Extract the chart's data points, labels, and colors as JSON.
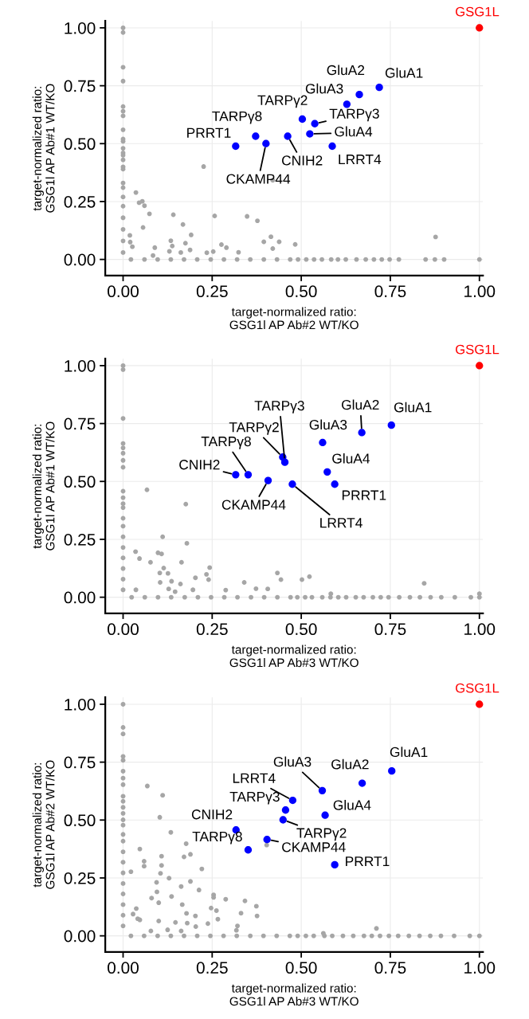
{
  "chart_data": [
    {
      "type": "scatter",
      "xlabel": "target-normalized ratio:\nGSG1l AP Ab#2 WT/KO",
      "ylabel": "target-normalized ratio:\nGSG1l AP Ab#1 WT/KO",
      "xlim": [
        -0.05,
        1.01
      ],
      "ylim": [
        -0.07,
        1.03
      ],
      "xticks": [
        {
          "value": 0,
          "label": "0.00"
        },
        {
          "value": 0.25,
          "label": "0.25"
        },
        {
          "value": 0.5,
          "label": "0.50"
        },
        {
          "value": 0.75,
          "label": "0.75"
        },
        {
          "value": 1,
          "label": "1.00"
        }
      ],
      "yticks": [
        {
          "value": 0,
          "label": "0.00"
        },
        {
          "value": 0.25,
          "label": "0.25"
        },
        {
          "value": 0.5,
          "label": "0.50"
        },
        {
          "value": 0.75,
          "label": "0.75"
        },
        {
          "value": 1,
          "label": "1.00"
        }
      ],
      "grid": true,
      "marker": "circle",
      "series": [
        {
          "color": "#a6a6a6",
          "x": [
            0,
            0,
            0,
            0,
            0,
            0,
            0,
            0,
            0,
            0,
            0,
            0,
            0,
            0,
            0,
            0,
            0,
            0,
            0,
            0,
            0,
            0,
            0,
            0,
            0.036,
            0.045,
            0.054,
            0.06,
            0.074,
            0.056,
            0.141,
            0.168,
            0.226,
            0.257,
            0.348,
            0.377,
            0.42,
            0.191,
            0.019,
            0.02,
            0.026,
            0.089,
            0.134,
            0.138,
            0.175,
            0.188,
            0.13,
            0.162,
            0.235,
            0.253,
            0.276,
            0.29,
            0.324,
            0.395,
            0.415,
            0.438,
            0.42,
            0.483,
            0.877,
            0.084,
            0.022,
            0.06,
            0.097,
            0.134,
            0.171,
            0.208,
            0.246,
            0.283,
            0.32,
            0.357,
            0.395,
            0.432,
            0.469,
            0.491,
            0.514,
            0.536,
            0.558,
            0.584,
            0.603,
            0.625,
            0.655,
            0.681,
            0.704,
            0.726,
            0.748,
            0.774,
            0.849,
            0.875,
            0.901,
            1.0
          ],
          "values": [
            1.0,
            0.98,
            0.83,
            0.77,
            0.66,
            0.64,
            0.62,
            0.56,
            0.52,
            0.51,
            0.48,
            0.46,
            0.45,
            0.43,
            0.4,
            0.39,
            0.33,
            0.31,
            0.27,
            0.23,
            0.18,
            0.13,
            0.08,
            0.03,
            0.289,
            0.245,
            0.251,
            0.232,
            0.197,
            0.138,
            0.193,
            0.151,
            0.401,
            0.188,
            0.186,
            0.167,
            0.342,
            0.106,
            0.104,
            0.075,
            0.055,
            0.051,
            0.081,
            0.058,
            0.07,
            0.041,
            0.035,
            0.03,
            0.029,
            0.034,
            0.064,
            0.051,
            0.031,
            0.076,
            0.098,
            0.076,
            0.047,
            0.065,
            0.097,
            0.017,
            0,
            0,
            0,
            0,
            0,
            0,
            0,
            0,
            0,
            0,
            0,
            0,
            0,
            0,
            0,
            0,
            0,
            0,
            0,
            0,
            0,
            0,
            0,
            0,
            0,
            0,
            0,
            0,
            0,
            0
          ]
        },
        {
          "color": "#0000ff",
          "x": [
            0.719,
            0.663,
            0.628,
            0.524,
            0.503,
            0.538,
            0.372,
            0.462,
            0.401,
            0.587,
            0.316
          ],
          "values": [
            0.743,
            0.712,
            0.67,
            0.542,
            0.606,
            0.586,
            0.532,
            0.532,
            0.5,
            0.489,
            0.489
          ]
        },
        {
          "name": "GSG1L",
          "color": "#ff0000",
          "x": [
            1.0
          ],
          "values": [
            1.0
          ]
        }
      ],
      "annotations": [
        {
          "text": "GluA1",
          "x": 0.719,
          "y": 0.743
        },
        {
          "text": "GluA2",
          "x": 0.663,
          "y": 0.712
        },
        {
          "text": "GluA3",
          "x": 0.628,
          "y": 0.67
        },
        {
          "text": "GluA4",
          "x": 0.524,
          "y": 0.542
        },
        {
          "text": "TARPγ2",
          "x": 0.503,
          "y": 0.606
        },
        {
          "text": "TARPγ3",
          "x": 0.538,
          "y": 0.586
        },
        {
          "text": "TARPγ8",
          "x": 0.372,
          "y": 0.532
        },
        {
          "text": "CNIH2",
          "x": 0.462,
          "y": 0.532
        },
        {
          "text": "CKAMP44",
          "x": 0.401,
          "y": 0.5
        },
        {
          "text": "LRRT4",
          "x": 0.587,
          "y": 0.489
        },
        {
          "text": "PRRT1",
          "x": 0.316,
          "y": 0.489
        }
      ]
    },
    {
      "type": "scatter",
      "xlabel": "target-normalized ratio:\nGSG1l AP Ab#3 WT/KO",
      "ylabel": "target-normalized ratio:\nGSG1l AP Ab#1 WT/KO",
      "xlim": [
        -0.05,
        1.01
      ],
      "ylim": [
        -0.07,
        1.03
      ],
      "xticks": [
        {
          "value": 0,
          "label": "0.00"
        },
        {
          "value": 0.25,
          "label": "0.25"
        },
        {
          "value": 0.5,
          "label": "0.50"
        },
        {
          "value": 0.75,
          "label": "0.75"
        },
        {
          "value": 1,
          "label": "1.00"
        }
      ],
      "yticks": [
        {
          "value": 0,
          "label": "0.00"
        },
        {
          "value": 0.25,
          "label": "0.25"
        },
        {
          "value": 0.5,
          "label": "0.50"
        },
        {
          "value": 0.75,
          "label": "0.75"
        },
        {
          "value": 1,
          "label": "1.00"
        }
      ],
      "grid": true,
      "marker": "circle",
      "series": [
        {
          "color": "#a6a6a6",
          "x": [
            0,
            0,
            0,
            0,
            0,
            0,
            0,
            0,
            0,
            0,
            0,
            0,
            0,
            0,
            0,
            0,
            0,
            0,
            0,
            0,
            0.067,
            0.176,
            0.111,
            0.179,
            0.035,
            0.046,
            0.098,
            0.108,
            0.077,
            0.164,
            0.114,
            0.103,
            0.126,
            0.243,
            0.136,
            0.104,
            0.161,
            0.203,
            0.234,
            0.24,
            0.128,
            0.196,
            0.288,
            0.34,
            0.373,
            0.406,
            0.433,
            0.443,
            0.502,
            0.523,
            0.583,
            0.845,
            0.036,
            0.146,
            0.024,
            0.061,
            0.098,
            0.135,
            0.173,
            0.21,
            0.247,
            0.284,
            0.321,
            0.359,
            0.396,
            0.433,
            0.47,
            0.489,
            0.511,
            0.53,
            0.559,
            0.582,
            0.604,
            0.626,
            0.653,
            0.675,
            0.701,
            0.723,
            0.745,
            0.775,
            0.805,
            0.833,
            0.863,
            0.893,
            0.931,
            0.976,
            1.0,
            1.0
          ],
          "values": [
            1.0,
            0.983,
            0.772,
            0.664,
            0.645,
            0.622,
            0.591,
            0.561,
            0.458,
            0.43,
            0.404,
            0.387,
            0.341,
            0.307,
            0.261,
            0.215,
            0.17,
            0.124,
            0.078,
            0.032,
            0.464,
            0.402,
            0.261,
            0.233,
            0.197,
            0.167,
            0.192,
            0.187,
            0.151,
            0.151,
            0.126,
            0.105,
            0.103,
            0.128,
            0.069,
            0.064,
            0.057,
            0.084,
            0.099,
            0.076,
            0.036,
            0.032,
            0.031,
            0.064,
            0.037,
            0.036,
            0.105,
            0.076,
            0.076,
            0.089,
            0.015,
            0.06,
            0.032,
            0.024,
            0,
            0,
            0,
            0,
            0,
            0,
            0,
            0,
            0,
            0,
            0,
            0,
            0,
            0,
            0,
            0,
            0,
            0,
            0,
            0,
            0,
            0,
            0,
            0,
            0,
            0,
            0,
            0,
            0,
            0,
            0,
            0,
            0,
            0.015
          ]
        },
        {
          "color": "#0000ff",
          "x": [
            0.753,
            0.67,
            0.56,
            0.573,
            0.448,
            0.454,
            0.351,
            0.316,
            0.407,
            0.475,
            0.594
          ],
          "values": [
            0.743,
            0.711,
            0.668,
            0.541,
            0.605,
            0.583,
            0.529,
            0.529,
            0.504,
            0.488,
            0.488
          ]
        },
        {
          "name": "GSG1L",
          "color": "#ff0000",
          "x": [
            1.0
          ],
          "values": [
            1.0
          ]
        }
      ],
      "annotations": [
        {
          "text": "GluA1",
          "x": 0.753,
          "y": 0.743
        },
        {
          "text": "GluA2",
          "x": 0.67,
          "y": 0.711
        },
        {
          "text": "GluA3",
          "x": 0.56,
          "y": 0.668
        },
        {
          "text": "GluA4",
          "x": 0.573,
          "y": 0.541
        },
        {
          "text": "TARPγ2",
          "x": 0.448,
          "y": 0.605
        },
        {
          "text": "TARPγ3",
          "x": 0.454,
          "y": 0.583
        },
        {
          "text": "TARPγ8",
          "x": 0.351,
          "y": 0.529
        },
        {
          "text": "CNIH2",
          "x": 0.316,
          "y": 0.529
        },
        {
          "text": "CKAMP44",
          "x": 0.407,
          "y": 0.504
        },
        {
          "text": "LRRT4",
          "x": 0.475,
          "y": 0.488
        },
        {
          "text": "PRRT1",
          "x": 0.594,
          "y": 0.488
        }
      ]
    },
    {
      "type": "scatter",
      "xlabel": "target-normalized ratio:\nGSG1l AP Ab#3 WT/KO",
      "ylabel": "target-normalized ratio:\nGSG1l AP Ab#2 WT/KO",
      "xlim": [
        -0.05,
        1.01
      ],
      "ylim": [
        -0.07,
        1.03
      ],
      "xticks": [
        {
          "value": 0,
          "label": "0.00"
        },
        {
          "value": 0.25,
          "label": "0.25"
        },
        {
          "value": 0.5,
          "label": "0.50"
        },
        {
          "value": 0.75,
          "label": "0.75"
        },
        {
          "value": 1,
          "label": "1.00"
        }
      ],
      "yticks": [
        {
          "value": 0,
          "label": "0.00"
        },
        {
          "value": 0.25,
          "label": "0.25"
        },
        {
          "value": 0.5,
          "label": "0.50"
        },
        {
          "value": 0.75,
          "label": "0.75"
        },
        {
          "value": 1,
          "label": "1.00"
        }
      ],
      "grid": true,
      "marker": "circle",
      "series": [
        {
          "color": "#a6a6a6",
          "x": [
            0,
            0,
            0,
            0,
            0,
            0,
            0,
            0,
            0,
            0,
            0,
            0,
            0,
            0,
            0,
            0,
            0,
            0,
            0,
            0,
            0,
            0,
            0,
            0,
            0.068,
            0.111,
            0.103,
            0.134,
            0.177,
            0.189,
            0.171,
            0.221,
            0.047,
            0.059,
            0.059,
            0.108,
            0.108,
            0.105,
            0.129,
            0.022,
            0.094,
            0.095,
            0.08,
            0.1,
            0.136,
            0.166,
            0.163,
            0.189,
            0.213,
            0.254,
            0.254,
            0.288,
            0.342,
            0.374,
            0.376,
            0.331,
            0.262,
            0.266,
            0.247,
            0.203,
            0.178,
            0.204,
            0.18,
            0.147,
            0.1,
            0.037,
            0.028,
            0.041,
            0.047,
            0.078,
            0.125,
            0.163,
            0.238,
            0.321,
            0.318,
            0.711,
            0.562,
            0.403,
            0.022,
            0.059,
            0.097,
            0.134,
            0.171,
            0.208,
            0.245,
            0.282,
            0.319,
            0.357,
            0.394,
            0.431,
            0.468,
            0.49,
            0.513,
            0.535,
            0.565,
            0.587,
            0.617,
            0.646,
            0.676,
            0.698,
            0.721,
            0.746,
            0.772,
            0.802,
            0.832,
            0.862,
            0.892,
            0.929,
            0.973,
            1.0
          ],
          "values": [
            1.0,
            0.9,
            0.872,
            0.775,
            0.758,
            0.711,
            0.681,
            0.653,
            0.603,
            0.581,
            0.555,
            0.529,
            0.501,
            0.478,
            0.438,
            0.409,
            0.363,
            0.318,
            0.272,
            0.226,
            0.181,
            0.135,
            0.089,
            0.043,
            0.647,
            0.607,
            0.512,
            0.447,
            0.398,
            0.352,
            0.341,
            0.289,
            0.375,
            0.322,
            0.301,
            0.344,
            0.304,
            0.27,
            0.249,
            0.277,
            0.231,
            0.19,
            0.163,
            0.143,
            0.17,
            0.135,
            0.213,
            0.235,
            0.198,
            0.177,
            0.166,
            0.158,
            0.151,
            0.128,
            0.086,
            0.098,
            0.109,
            0.072,
            0.12,
            0.086,
            0.097,
            0.04,
            0.055,
            0.058,
            0.064,
            0.118,
            0.094,
            0.074,
            0.069,
            0.021,
            0.026,
            0.021,
            0.053,
            0.043,
            0.024,
            0.032,
            0.011,
            0.392,
            0,
            0,
            0,
            0,
            0,
            0,
            0,
            0,
            0,
            0,
            0,
            0,
            0,
            0,
            0,
            0,
            0,
            0,
            0,
            0,
            0,
            0,
            0,
            0,
            0,
            0,
            0,
            0,
            0,
            0,
            0,
            0
          ]
        },
        {
          "color": "#0000ff",
          "x": [
            0.754,
            0.671,
            0.559,
            0.567,
            0.449,
            0.456,
            0.351,
            0.317,
            0.404,
            0.476,
            0.594
          ],
          "values": [
            0.712,
            0.659,
            0.627,
            0.521,
            0.501,
            0.543,
            0.371,
            0.457,
            0.416,
            0.585,
            0.307
          ]
        },
        {
          "name": "GSG1L",
          "color": "#ff0000",
          "x": [
            1.0
          ],
          "values": [
            1.0
          ]
        }
      ],
      "annotations": [
        {
          "text": "GluA1",
          "x": 0.754,
          "y": 0.712
        },
        {
          "text": "GluA2",
          "x": 0.671,
          "y": 0.659
        },
        {
          "text": "GluA3",
          "x": 0.559,
          "y": 0.627
        },
        {
          "text": "GluA4",
          "x": 0.567,
          "y": 0.521
        },
        {
          "text": "TARPγ2",
          "x": 0.449,
          "y": 0.501
        },
        {
          "text": "TARPγ3",
          "x": 0.456,
          "y": 0.543
        },
        {
          "text": "TARPγ8",
          "x": 0.351,
          "y": 0.371
        },
        {
          "text": "CNIH2",
          "x": 0.317,
          "y": 0.457
        },
        {
          "text": "CKAMP44",
          "x": 0.404,
          "y": 0.416
        },
        {
          "text": "LRRT4",
          "x": 0.476,
          "y": 0.585
        },
        {
          "text": "PRRT1",
          "x": 0.594,
          "y": 0.307
        }
      ]
    }
  ]
}
